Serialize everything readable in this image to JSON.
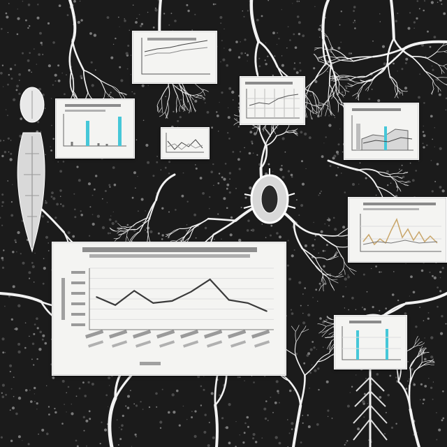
{
  "colors": {
    "background": "#1b1b1b",
    "vein": "#f2f2f2",
    "card": "#f4f4f2",
    "line": "#3a3a3a",
    "accent_bar": "#46c7d8",
    "accent_line": "#c9a66a"
  },
  "illustration": {
    "description_words": [],
    "cards": [
      {
        "id": "top-center",
        "chart": "line"
      },
      {
        "id": "left-bars",
        "chart": "bar"
      },
      {
        "id": "small-center",
        "chart": "line"
      },
      {
        "id": "upper-right-center",
        "chart": "table"
      },
      {
        "id": "right-top",
        "chart": "area"
      },
      {
        "id": "right-middle",
        "chart": "line"
      },
      {
        "id": "large-main",
        "chart": "line"
      },
      {
        "id": "right-lower-bars",
        "chart": "bar"
      }
    ],
    "icons": [
      "insect-specimen-icon",
      "fern-frond-icon",
      "seed-pod-icon"
    ]
  },
  "chart_data": {
    "type": "line",
    "series": [
      {
        "values": [
          3.2,
          2.4,
          3.8,
          2.6,
          2.8,
          3.7,
          4.9,
          2.9,
          2.6,
          1.8
        ]
      }
    ],
    "ylim": [
      0,
      6
    ]
  }
}
